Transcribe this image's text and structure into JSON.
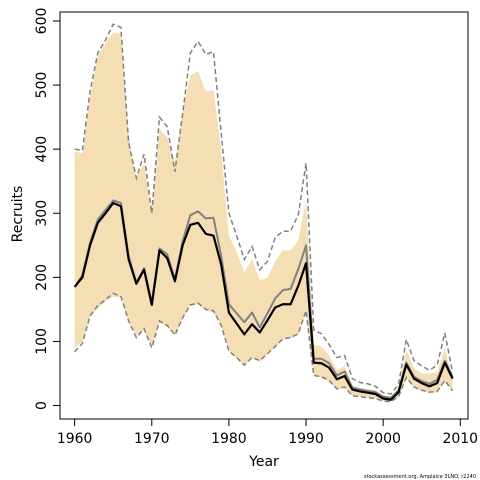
{
  "chart_data": {
    "type": "line",
    "title": "",
    "xlabel": "Year",
    "ylabel": "Recruits",
    "xlim": [
      1958.1,
      2011.0
    ],
    "ylim": [
      -21,
      614
    ],
    "xticks": [
      1960,
      1970,
      1980,
      1990,
      2000,
      2010
    ],
    "yticks": [
      0,
      100,
      200,
      300,
      400,
      500,
      600
    ],
    "grid": false,
    "legend": "none",
    "footer": "stockassessment.org, Amplaice 3LNO, r2240",
    "colors": {
      "band": "#f5deb3",
      "estimate": "#000000",
      "alt_estimate": "#808080",
      "bounds": "#808080"
    },
    "years": [
      1960,
      1961,
      1962,
      1963,
      1964,
      1965,
      1966,
      1967,
      1968,
      1969,
      1970,
      1971,
      1972,
      1973,
      1974,
      1975,
      1976,
      1977,
      1978,
      1979,
      1980,
      1981,
      1982,
      1983,
      1984,
      1985,
      1986,
      1987,
      1988,
      1989,
      1990,
      1991,
      1992,
      1993,
      1994,
      1995,
      1996,
      1997,
      1998,
      1999,
      2000,
      2001,
      2002,
      2003,
      2004,
      2005,
      2006,
      2007,
      2008,
      2009
    ],
    "series": [
      {
        "role": "band",
        "upper": [
          397,
          393,
          480,
          545,
          565,
          582,
          580,
          420,
          355,
          378,
          298,
          432,
          418,
          378,
          460,
          515,
          522,
          490,
          492,
          398,
          265,
          240,
          208,
          228,
          195,
          200,
          225,
          242,
          242,
          258,
          320,
          95,
          92,
          78,
          55,
          62,
          30,
          28,
          25,
          24,
          15,
          14,
          27,
          87,
          58,
          50,
          50,
          52,
          90,
          40
        ],
        "lower": [
          90,
          100,
          138,
          152,
          163,
          170,
          168,
          130,
          110,
          118,
          92,
          130,
          123,
          110,
          135,
          155,
          158,
          148,
          145,
          125,
          85,
          74,
          62,
          75,
          68,
          80,
          92,
          103,
          105,
          110,
          148,
          46,
          44,
          37,
          25,
          28,
          15,
          14,
          12,
          11,
          7,
          6,
          13,
          43,
          28,
          23,
          20,
          21,
          38,
          22
        ]
      },
      {
        "role": "bounds",
        "upper": [
          400,
          398,
          490,
          550,
          570,
          595,
          590,
          410,
          355,
          392,
          300,
          450,
          435,
          365,
          455,
          550,
          568,
          548,
          552,
          425,
          300,
          265,
          228,
          248,
          212,
          225,
          262,
          272,
          272,
          298,
          378,
          118,
          112,
          95,
          75,
          78,
          42,
          36,
          34,
          30,
          20,
          18,
          33,
          103,
          70,
          62,
          55,
          63,
          113,
          52
        ],
        "lower": [
          84,
          97,
          140,
          156,
          165,
          175,
          170,
          132,
          106,
          120,
          90,
          132,
          125,
          110,
          137,
          157,
          160,
          150,
          148,
          125,
          85,
          75,
          63,
          75,
          70,
          81,
          92,
          104,
          106,
          112,
          148,
          47,
          45,
          39,
          26,
          29,
          15,
          14,
          12,
          11,
          7,
          6,
          14,
          44,
          29,
          24,
          21,
          22,
          39,
          23
        ]
      },
      {
        "role": "alt_estimate",
        "values": [
          185,
          203,
          254,
          290,
          305,
          320,
          316,
          233,
          192,
          214,
          160,
          245,
          236,
          197,
          256,
          297,
          303,
          292,
          293,
          233,
          158,
          144,
          130,
          145,
          122,
          144,
          167,
          180,
          182,
          213,
          250,
          73,
          73,
          66,
          47,
          53,
          28,
          25,
          23,
          21,
          14,
          12,
          24,
          67,
          45,
          38,
          34,
          40,
          70,
          45
        ]
      },
      {
        "role": "estimate",
        "values": [
          185,
          200,
          250,
          285,
          300,
          316,
          311,
          228,
          190,
          212,
          157,
          242,
          230,
          194,
          250,
          282,
          285,
          268,
          265,
          220,
          145,
          128,
          111,
          127,
          114,
          133,
          153,
          158,
          158,
          187,
          222,
          67,
          66,
          59,
          41,
          46,
          25,
          22,
          20,
          18,
          11,
          9,
          21,
          64,
          42,
          35,
          30,
          35,
          67,
          42
        ]
      }
    ]
  }
}
